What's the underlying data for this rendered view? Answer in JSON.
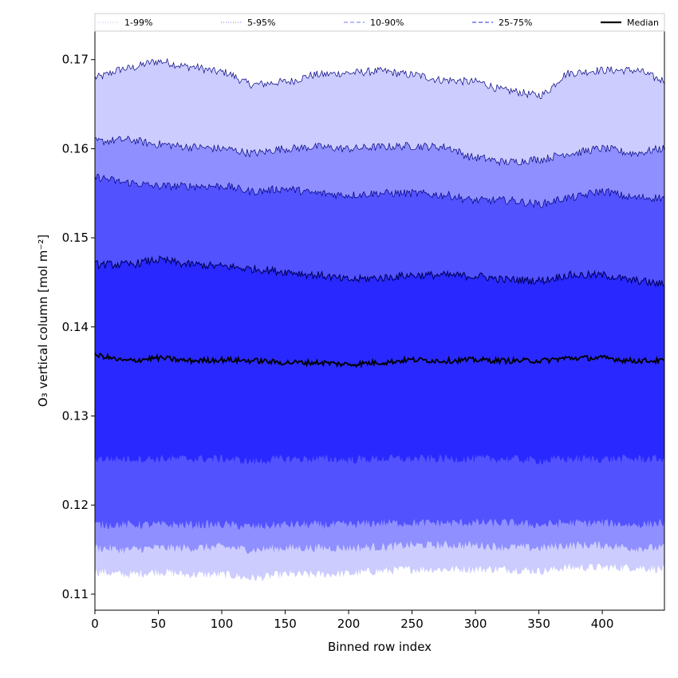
{
  "chart_data": {
    "type": "area",
    "title": "",
    "xlabel": "Binned row index",
    "ylabel": "O₃ vertical column [mol m⁻²]",
    "xlim": [
      0,
      449
    ],
    "ylim": [
      0.1082,
      0.1732
    ],
    "xticks": [
      0,
      50,
      100,
      150,
      200,
      250,
      300,
      350,
      400
    ],
    "yticks": [
      0.11,
      0.12,
      0.13,
      0.14,
      0.15,
      0.16,
      0.17
    ],
    "ytick_labels": [
      "0.11",
      "0.12",
      "0.13",
      "0.14",
      "0.15",
      "0.16",
      "0.17"
    ],
    "legend": {
      "placement": "top",
      "entries": [
        {
          "label": "1-99%",
          "style": "dotted",
          "color": "#ccccff"
        },
        {
          "label": "5-95%",
          "style": "dotted",
          "color": "#8f8fff"
        },
        {
          "label": "10-90%",
          "style": "dashed",
          "color": "#8f8fff"
        },
        {
          "label": "25-75%",
          "style": "dashed",
          "color": "#5252ff"
        },
        {
          "label": "Median",
          "style": "solid",
          "color": "#000000"
        }
      ]
    },
    "x": [
      0,
      25,
      50,
      75,
      100,
      125,
      150,
      175,
      200,
      225,
      250,
      275,
      300,
      325,
      350,
      375,
      400,
      425,
      449
    ],
    "bands": [
      {
        "name": "1-99%",
        "color": "#ccccff",
        "upper": [
          0.168,
          0.169,
          0.1698,
          0.1692,
          0.1686,
          0.1672,
          0.1675,
          0.1683,
          0.1685,
          0.1687,
          0.1683,
          0.1677,
          0.1675,
          0.1665,
          0.166,
          0.1685,
          0.1688,
          0.1688,
          0.1677
        ],
        "lower": [
          0.1125,
          0.1122,
          0.1125,
          0.1122,
          0.1122,
          0.1118,
          0.1122,
          0.1122,
          0.1123,
          0.1126,
          0.1128,
          0.1128,
          0.1128,
          0.1128,
          0.1126,
          0.113,
          0.113,
          0.113,
          0.1128
        ]
      },
      {
        "name": "5-95%",
        "color": "#8f8fff",
        "upper": [
          0.1608,
          0.161,
          0.1605,
          0.1602,
          0.16,
          0.1595,
          0.16,
          0.1602,
          0.16,
          0.1602,
          0.1603,
          0.1602,
          0.159,
          0.1585,
          0.1588,
          0.1595,
          0.16,
          0.1595,
          0.16
        ],
        "lower": [
          0.1152,
          0.115,
          0.1152,
          0.1152,
          0.1153,
          0.115,
          0.1152,
          0.1152,
          0.1152,
          0.1153,
          0.1155,
          0.1155,
          0.1155,
          0.1153,
          0.1152,
          0.1155,
          0.1155,
          0.1152,
          0.1152
        ]
      },
      {
        "name": "10-90%",
        "color": "#5252ff",
        "upper": [
          0.1568,
          0.1562,
          0.1558,
          0.1558,
          0.1558,
          0.1552,
          0.1555,
          0.155,
          0.1548,
          0.155,
          0.155,
          0.1548,
          0.1542,
          0.1542,
          0.1538,
          0.1545,
          0.1552,
          0.1545,
          0.1545
        ],
        "lower": [
          0.1178,
          0.1178,
          0.1178,
          0.1178,
          0.1178,
          0.1176,
          0.1178,
          0.1178,
          0.1178,
          0.118,
          0.118,
          0.118,
          0.118,
          0.118,
          0.1178,
          0.118,
          0.118,
          0.1178,
          0.118
        ]
      },
      {
        "name": "25-75%",
        "color": "#2929ff",
        "upper": [
          0.147,
          0.147,
          0.1475,
          0.147,
          0.1468,
          0.1465,
          0.1462,
          0.1458,
          0.1453,
          0.1455,
          0.1458,
          0.1458,
          0.1457,
          0.1453,
          0.1452,
          0.1458,
          0.1458,
          0.1452,
          0.1448
        ],
        "lower": [
          0.1252,
          0.1252,
          0.1252,
          0.1252,
          0.1252,
          0.1249,
          0.1252,
          0.1252,
          0.1251,
          0.1252,
          0.1252,
          0.1252,
          0.1252,
          0.1252,
          0.125,
          0.1252,
          0.1252,
          0.1252,
          0.1252
        ]
      }
    ],
    "series": [
      {
        "name": "Median",
        "color": "#000000",
        "values": [
          0.1368,
          0.1362,
          0.1365,
          0.1362,
          0.1363,
          0.1362,
          0.136,
          0.136,
          0.1358,
          0.136,
          0.1363,
          0.1362,
          0.1363,
          0.1362,
          0.1362,
          0.1365,
          0.1365,
          0.1362,
          0.1362
        ]
      }
    ]
  }
}
